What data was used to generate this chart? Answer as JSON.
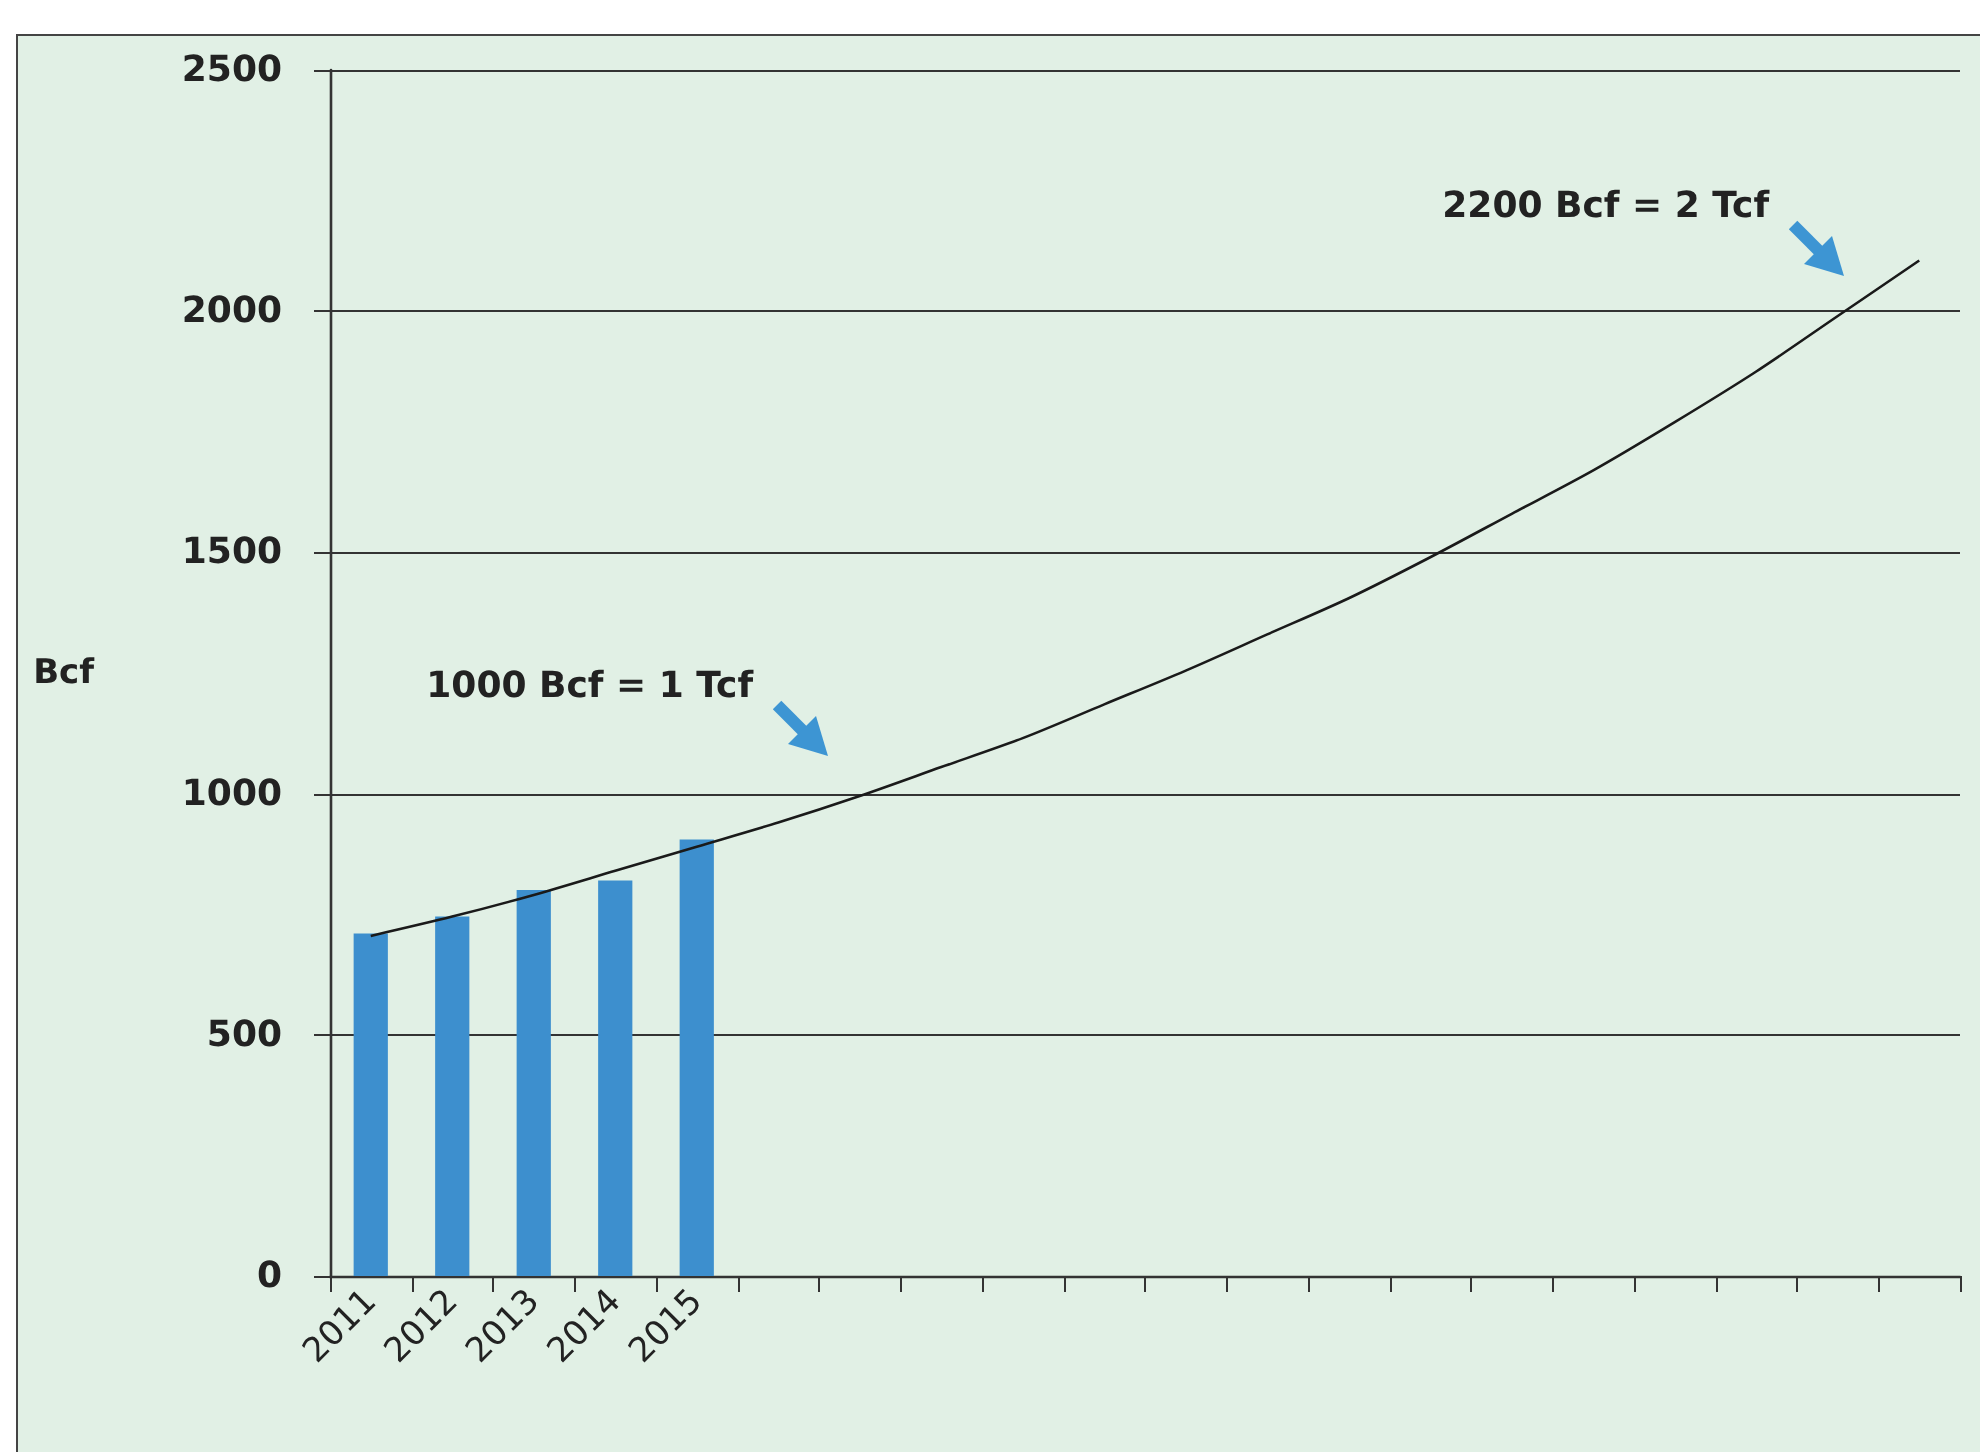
{
  "chart_data": {
    "type": "bar",
    "ylabel": "Bcf",
    "categories": [
      "2011",
      "2012",
      "2013",
      "2014",
      "2015",
      null,
      null,
      null,
      null,
      null,
      null,
      null,
      null,
      null,
      null,
      null,
      null,
      null,
      null,
      null
    ],
    "series": [
      {
        "color": "#3d8fce",
        "values": [
          710,
          745,
          800,
          820,
          905,
          null,
          null,
          null,
          null,
          null,
          null,
          null,
          null,
          null,
          null,
          null,
          null,
          null,
          null,
          null
        ]
      },
      {
        "type": "line",
        "color": "#1a1a1a",
        "marker": "none",
        "line_style": "solid",
        "values": [
          705,
          745,
          790,
          840,
          890,
          940,
          995,
          1055,
          1115,
          1185,
          1255,
          1330,
          1405,
          1490,
          1580,
          1670,
          1770,
          1875,
          1990,
          2105
        ]
      }
    ],
    "ylim": [
      0,
      2500
    ],
    "yticks": [
      0,
      500,
      1000,
      1500,
      2000,
      2500
    ],
    "grid": "y",
    "annotations": [
      "1000 Bcf = 1 Tcf",
      "2200 Bcf = 2 Tcf"
    ]
  }
}
